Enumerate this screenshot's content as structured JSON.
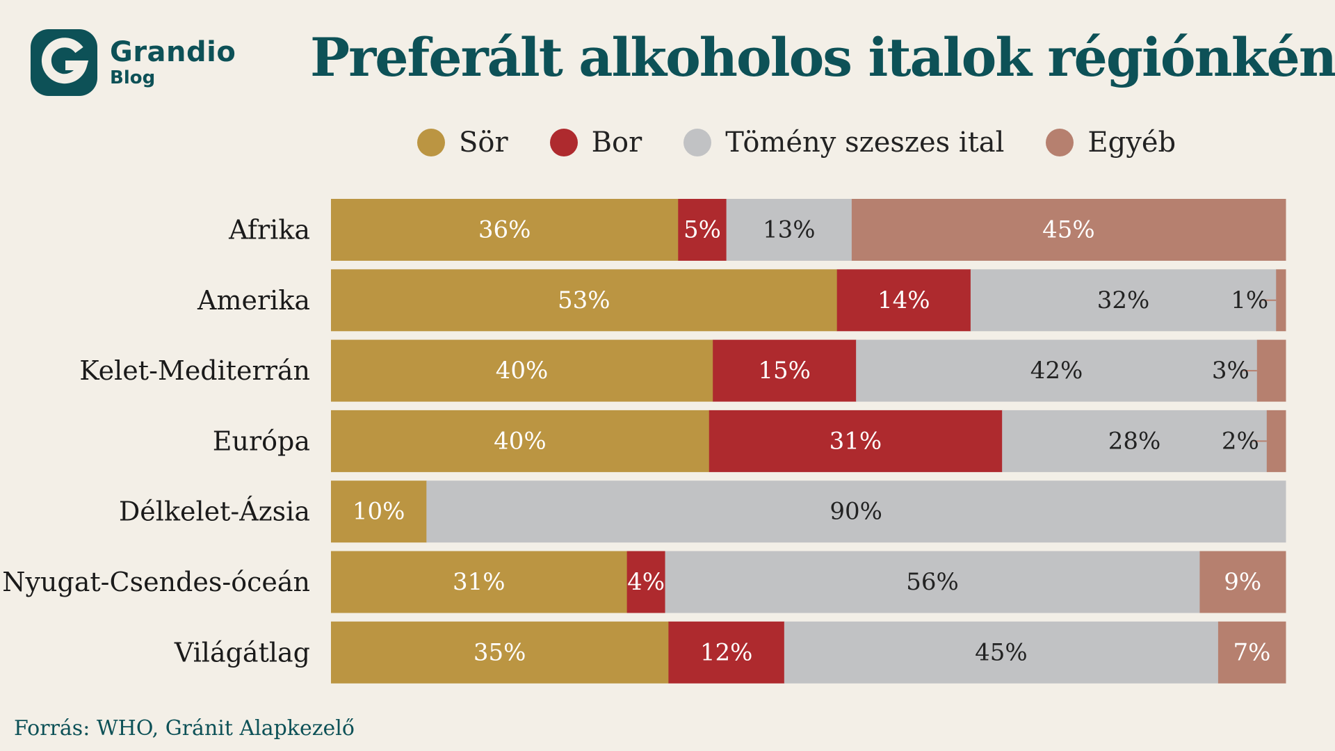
{
  "header": {
    "logo_name": "Grandio",
    "logo_sub": "Blog",
    "title": "Preferált alkoholos italok régiónként"
  },
  "colors": {
    "brand": "#0d5157",
    "Sör": "#bb9542",
    "Bor": "#ae2a2e",
    "Tömény szeszes ital": "#c1c2c4",
    "Egyéb": "#b6806f"
  },
  "footer": {
    "source": "Forrás: WHO, Gránit Alapkezelő"
  },
  "chart_data": {
    "type": "bar",
    "orientation": "horizontal",
    "stacked": true,
    "title": "Preferált alkoholos italok régiónként",
    "legend_position": "top",
    "categories": [
      "Afrika",
      "Amerika",
      "Kelet-Mediterrán",
      "Európa",
      "Délkelet-Ázsia",
      "Nyugat-Csendes-óceán",
      "Világátlag"
    ],
    "series": [
      {
        "name": "Sör",
        "values": [
          36,
          53,
          40,
          40,
          10,
          31,
          35
        ],
        "label_color": "#ffffff"
      },
      {
        "name": "Bor",
        "values": [
          5,
          14,
          15,
          31,
          0,
          4,
          12
        ],
        "label_color": "#ffffff"
      },
      {
        "name": "Tömény szeszes ital",
        "values": [
          13,
          32,
          42,
          28,
          90,
          56,
          45
        ],
        "label_color": "#222222"
      },
      {
        "name": "Egyéb",
        "values": [
          45,
          1,
          3,
          2,
          0,
          9,
          7
        ],
        "label_color": "#ffffff"
      }
    ],
    "labels": [
      [
        "36%",
        "5%",
        "13%",
        "45%"
      ],
      [
        "53%",
        "14%",
        "32%",
        "1%"
      ],
      [
        "40%",
        "15%",
        "42%",
        "3%"
      ],
      [
        "40%",
        "31%",
        "28%",
        "2%"
      ],
      [
        "10%",
        "",
        "90%",
        ""
      ],
      [
        "31%",
        "4%",
        "56%",
        "9%"
      ],
      [
        "35%",
        "12%",
        "45%",
        "7%"
      ]
    ]
  }
}
